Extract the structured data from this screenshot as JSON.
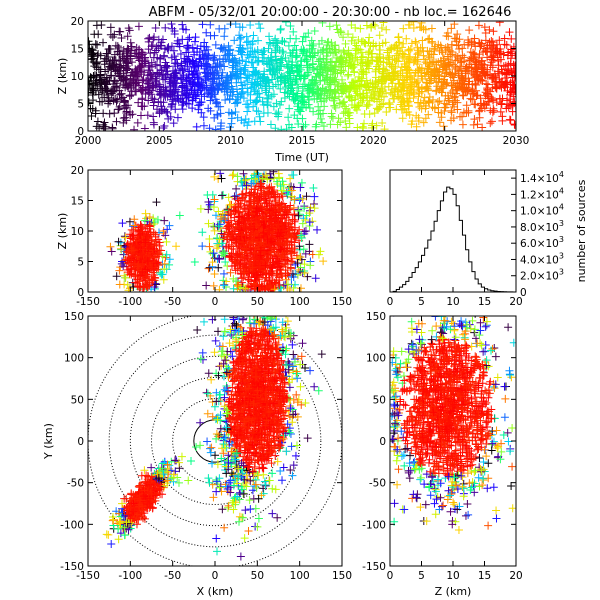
{
  "title": "ABFM - 05/32/01 20:00:00 - 20:30:00 - nb loc.= 162646",
  "chart_data": [
    {
      "id": "time-height",
      "type": "scatter",
      "xlabel": "Time (UT)",
      "ylabel": "Z (km)",
      "xlim": [
        2000,
        2030
      ],
      "ylim": [
        0,
        20
      ],
      "xticks": [
        "2000",
        "2005",
        "2010",
        "2015",
        "2020",
        "2025",
        "2030"
      ],
      "yticks": [
        "0",
        "5",
        "10",
        "15",
        "20"
      ],
      "color_by": "time",
      "colormap": [
        "#000000",
        "#5a0070",
        "#1f00ff",
        "#00c8ff",
        "#00ff80",
        "#c0ff00",
        "#ffd000",
        "#ff6000",
        "#ff0000"
      ],
      "point_density": "dense band from 0 to 20 km over the full period"
    },
    {
      "id": "xz-projection",
      "type": "scatter",
      "xlabel": "",
      "ylabel": "Z (km)",
      "xlim": [
        -150,
        150
      ],
      "ylim": [
        0,
        20
      ],
      "xticks": [
        "-150",
        "-100",
        "-50",
        "0",
        "50",
        "100",
        "150"
      ],
      "yticks": [
        "0",
        "5",
        "10",
        "15",
        "20"
      ],
      "clusters": [
        {
          "x_center": -85,
          "z_center": 6,
          "x_spread": 12,
          "z_spread": 3
        },
        {
          "x_center": 55,
          "z_center": 9,
          "x_spread": 25,
          "z_spread": 5
        }
      ]
    },
    {
      "id": "altitude-histogram",
      "type": "bar",
      "xlabel": "",
      "ylabel": "number of sources",
      "xlim": [
        0,
        20
      ],
      "ylim": [
        0,
        15000
      ],
      "xticks": [
        "0",
        "5",
        "10",
        "15",
        "20"
      ],
      "yticks": [
        {
          "mantissa": "0",
          "exponent": ""
        },
        {
          "mantissa": "2.0×10",
          "exponent": "3"
        },
        {
          "mantissa": "4.0×10",
          "exponent": "3"
        },
        {
          "mantissa": "6.0×10",
          "exponent": "3"
        },
        {
          "mantissa": "8.0×10",
          "exponent": "3"
        },
        {
          "mantissa": "1.0×10",
          "exponent": "4"
        },
        {
          "mantissa": "1.2×10",
          "exponent": "4"
        },
        {
          "mantissa": "1.4×10",
          "exponent": "4"
        }
      ],
      "ytick_values": [
        0,
        2000,
        4000,
        6000,
        8000,
        10000,
        12000,
        14000
      ],
      "bin_width": 0.5,
      "bin_start": 0,
      "values": [
        0,
        80,
        300,
        600,
        900,
        1300,
        1800,
        2400,
        3000,
        3700,
        4500,
        5400,
        6400,
        7500,
        8700,
        10000,
        11200,
        12300,
        12900,
        12700,
        12000,
        10600,
        8800,
        7000,
        5200,
        3700,
        2500,
        1600,
        1000,
        600,
        400,
        250,
        150,
        100,
        60,
        40,
        25,
        15,
        10,
        5
      ]
    },
    {
      "id": "plan-view",
      "type": "scatter",
      "xlabel": "X (km)",
      "ylabel": "Y (km)",
      "xlim": [
        -150,
        150
      ],
      "ylim": [
        -150,
        150
      ],
      "xticks": [
        "-150",
        "-100",
        "-50",
        "0",
        "50",
        "100",
        "150"
      ],
      "yticks": [
        "-150",
        "-100",
        "-50",
        "0",
        "50",
        "100",
        "150"
      ],
      "range_rings_km": [
        25,
        50,
        75,
        100,
        125,
        150
      ],
      "clusters": [
        {
          "x_center": 50,
          "y_center": 50,
          "x_spread": 22,
          "y_spread": 55
        },
        {
          "x_center": -85,
          "y_center": -70,
          "x_spread": 15,
          "y_spread": 20
        }
      ]
    },
    {
      "id": "yz-projection",
      "type": "scatter",
      "xlabel": "Z (km)",
      "ylabel": "",
      "xlim": [
        0,
        20
      ],
      "ylim": [
        -150,
        150
      ],
      "xticks": [
        "0",
        "5",
        "10",
        "15",
        "20"
      ],
      "yticks": [
        "-150",
        "-100",
        "-50",
        "0",
        "50",
        "100",
        "150"
      ],
      "clusters": [
        {
          "z_center": 9,
          "y_center": 40,
          "z_spread": 5,
          "y_spread": 55
        }
      ]
    }
  ]
}
